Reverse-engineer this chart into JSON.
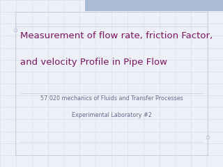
{
  "title_line1": "Measurement of flow rate, friction Factor,",
  "title_line2": "and velocity Profile in Pipe Flow",
  "subtitle_line1": "57:020 mechanics of Fluids and Transfer Processes",
  "subtitle_line2": "Experimental Laboratory #2",
  "bg_color": "#edf0f7",
  "grid_color": "#c5cce0",
  "title_color": "#7b1560",
  "subtitle_color": "#6a6a8a",
  "top_bar_color": "#aabbd4",
  "title_fontsize": 9.5,
  "subtitle_fontsize": 5.8,
  "border_color": "#9999bb",
  "fig_width": 3.2,
  "fig_height": 2.4,
  "dpi": 100
}
